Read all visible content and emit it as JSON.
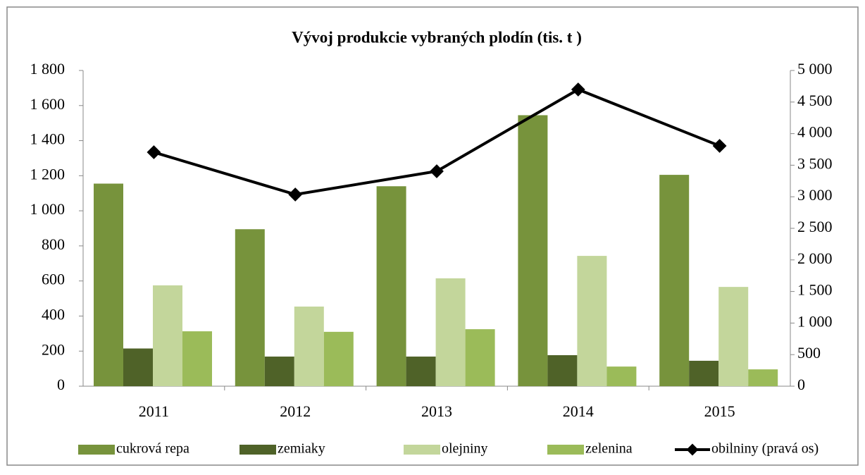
{
  "chart_data": {
    "type": "bar",
    "title": "Vývoj produkcie vybraných plodín (tis. t )",
    "categories": [
      "2011",
      "2012",
      "2013",
      "2014",
      "2015"
    ],
    "series": [
      {
        "name": "cukrová repa",
        "color": "#77933c",
        "values": [
          1155,
          895,
          1140,
          1545,
          1205
        ]
      },
      {
        "name": "zemiaky",
        "color": "#4f6228",
        "values": [
          215,
          169,
          169,
          177,
          145
        ]
      },
      {
        "name": "olejniny",
        "color": "#c3d69b",
        "values": [
          575,
          454,
          615,
          743,
          566
        ]
      },
      {
        "name": "zelenina",
        "color": "#9bbb59",
        "values": [
          313,
          310,
          325,
          112,
          96
        ]
      },
      {
        "name": "obilniny (pravá os)",
        "color": "#000000",
        "type": "line",
        "axis": "y2",
        "values": [
          3705,
          3036,
          3404,
          4699,
          3806
        ]
      }
    ],
    "ylim": [
      0,
      1800
    ],
    "yticks": [
      0,
      200,
      400,
      600,
      800,
      {
        "value": 1000,
        "label": "1 000"
      },
      {
        "value": 1200,
        "label": "1 200"
      },
      {
        "value": 1400,
        "label": "1 400"
      },
      {
        "value": 1600,
        "label": "1 600"
      },
      {
        "value": 1800,
        "label": "1 800"
      }
    ],
    "y2lim": [
      0,
      5000
    ],
    "y2ticks": [
      0,
      500,
      {
        "value": 1000,
        "label": "1 000"
      },
      {
        "value": 1500,
        "label": "1 500"
      },
      {
        "value": 2000,
        "label": "2 000"
      },
      {
        "value": 2500,
        "label": "2 500"
      },
      {
        "value": 3000,
        "label": "3 000"
      },
      {
        "value": 3500,
        "label": "3 500"
      },
      {
        "value": 4000,
        "label": "4 000"
      },
      {
        "value": 4500,
        "label": "4 500"
      },
      {
        "value": 5000,
        "label": "5 000"
      }
    ],
    "legend": "bottom"
  }
}
